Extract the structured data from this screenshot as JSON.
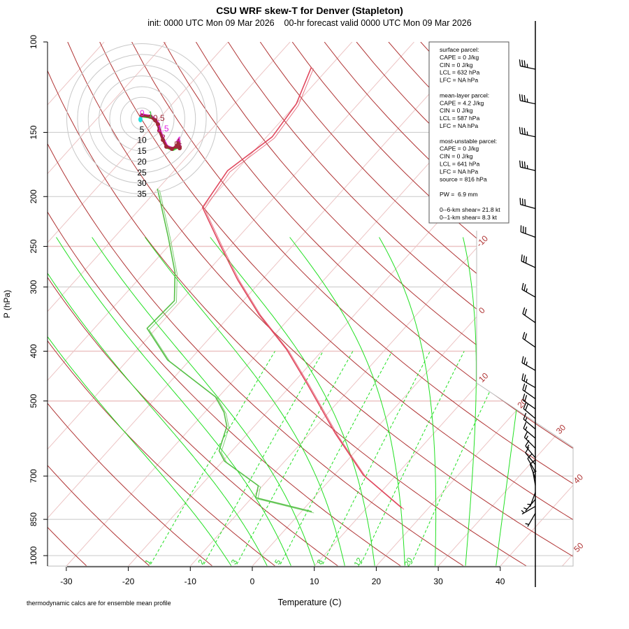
{
  "chart_data": {
    "type": "skew-t",
    "title": "CSU WRF skew-T for Denver (Stapleton)",
    "subtitle": "init: 0000 UTC Mon 09 Mar 2026    00-hr forecast valid 0000 UTC Mon 09 Mar 2026",
    "xlabel": "Temperature (C)",
    "ylabel": "P (hPa)",
    "ylim": [
      1050,
      100
    ],
    "x_ticks": [
      -30,
      -20,
      -10,
      0,
      10,
      20,
      30,
      40
    ],
    "y_ticks": [
      100,
      150,
      200,
      250,
      300,
      400,
      500,
      700,
      850,
      1000
    ],
    "isotherm_labels": [
      -10,
      0,
      10,
      20,
      30,
      40,
      50
    ],
    "mixing_ratio_labels": [
      1,
      2,
      3,
      5,
      8,
      12,
      20
    ],
    "temperature": {
      "p": [
        808,
        697,
        578,
        464,
        397,
        339,
        290,
        248,
        210,
        178,
        153,
        132,
        112
      ],
      "t": [
        15.7,
        4.7,
        -5.9,
        -17.5,
        -25.9,
        -35.5,
        -44.0,
        -51.9,
        -60.1,
        -61.4,
        -59.1,
        -60.0,
        -62.9
      ]
    },
    "dewpoint": {
      "p": [
        821,
        771,
        731,
        655,
        625,
        560,
        526,
        491,
        416,
        361,
        319,
        281,
        240,
        193
      ],
      "t": [
        1.7,
        -9.4,
        -10.7,
        -19.7,
        -22.1,
        -24.4,
        -26.9,
        -30.5,
        -43.6,
        -51.5,
        -51.1,
        -55.1,
        -61.3,
        -70.1
      ]
    },
    "winds": [
      {
        "p": 113,
        "dir": 282,
        "kt": 35
      },
      {
        "p": 132,
        "dir": 282,
        "kt": 35
      },
      {
        "p": 153,
        "dir": 282,
        "kt": 35
      },
      {
        "p": 178,
        "dir": 283,
        "kt": 35
      },
      {
        "p": 211,
        "dir": 285,
        "kt": 30
      },
      {
        "p": 240,
        "dir": 290,
        "kt": 30
      },
      {
        "p": 275,
        "dir": 295,
        "kt": 30
      },
      {
        "p": 314,
        "dir": 300,
        "kt": 25
      },
      {
        "p": 352,
        "dir": 305,
        "kt": 20
      },
      {
        "p": 393,
        "dir": 305,
        "kt": 20
      },
      {
        "p": 436,
        "dir": 300,
        "kt": 25
      },
      {
        "p": 471,
        "dir": 300,
        "kt": 25
      },
      {
        "p": 495,
        "dir": 305,
        "kt": 20
      },
      {
        "p": 518,
        "dir": 305,
        "kt": 20
      },
      {
        "p": 541,
        "dir": 310,
        "kt": 20
      },
      {
        "p": 567,
        "dir": 310,
        "kt": 15
      },
      {
        "p": 591,
        "dir": 310,
        "kt": 15
      },
      {
        "p": 618,
        "dir": 315,
        "kt": 15
      },
      {
        "p": 645,
        "dir": 320,
        "kt": 15
      },
      {
        "p": 665,
        "dir": 320,
        "kt": 10
      },
      {
        "p": 687,
        "dir": 330,
        "kt": 10
      },
      {
        "p": 708,
        "dir": 340,
        "kt": 10
      },
      {
        "p": 730,
        "dir": 350,
        "kt": 5
      },
      {
        "p": 753,
        "dir": 200,
        "kt": 5
      },
      {
        "p": 777,
        "dir": 220,
        "kt": 5
      },
      {
        "p": 802,
        "dir": 240,
        "kt": 5
      },
      {
        "p": 827,
        "dir": 210,
        "kt": 5
      }
    ],
    "hodograph": {
      "rings": [
        5,
        10,
        15,
        20,
        25,
        30,
        35
      ],
      "points": [
        [
          0,
          1.6
        ],
        [
          3.9,
          1
        ],
        [
          6.2,
          -0.7
        ],
        [
          7.5,
          -2.6
        ],
        [
          8.1,
          -5.5
        ],
        [
          9.8,
          -9.8
        ],
        [
          11.4,
          -13
        ],
        [
          14,
          -14
        ],
        [
          16,
          -13
        ],
        [
          17,
          -10.7
        ],
        [
          17.6,
          -13.7
        ]
      ],
      "labels": [
        {
          "text": "0",
          "i": 0,
          "color": "#e020e0"
        },
        {
          "text": "1",
          "i": 1,
          "color": "#40c040"
        },
        {
          "text": "0.5",
          "i": 2,
          "color": "#a03040"
        },
        {
          "text": "1.5",
          "i": 4,
          "color": "#e020e0"
        },
        {
          "text": "2",
          "i": 5,
          "color": "#a03040"
        },
        {
          "text": "4",
          "i": 9,
          "color": "#e020e0"
        },
        {
          "text": "5",
          "i": 8,
          "color": "#a03040"
        },
        {
          "text": "6",
          "i": 10,
          "color": "#a03040"
        }
      ]
    }
  },
  "stats": {
    "lines": [
      "surface parcel:",
      "CAPE = 0 J/kg",
      "CIN = 0 J/kg",
      "LCL = 632 hPa",
      "LFC = NA hPa",
      "",
      "mean-layer parcel:",
      "CAPE = 4.2 J/kg",
      "CIN = 0 J/kg",
      "LCL = 587 hPa",
      "LFC = NA hPa",
      "",
      "most-unstable parcel:",
      "CAPE = 0 J/kg",
      "CIN = 0 J/kg",
      "LCL = 641 hPa",
      "LFC = NA hPa",
      "source = 816 hPa",
      "",
      "PW =  6.9 mm",
      "",
      "0--6-km shear= 21.8 kt",
      "0--1-km shear= 8.3 kt"
    ]
  },
  "footnote": "thermodynamic calcs are for ensemble mean profile",
  "colors": {
    "temperature": "#e0485e",
    "dewpoint": "#58c048",
    "isotherm": "#ecc4c4",
    "dry_adiabat": "#b03434",
    "moist_adiabat": "#22e022",
    "mixing_ratio": "#22e022"
  }
}
